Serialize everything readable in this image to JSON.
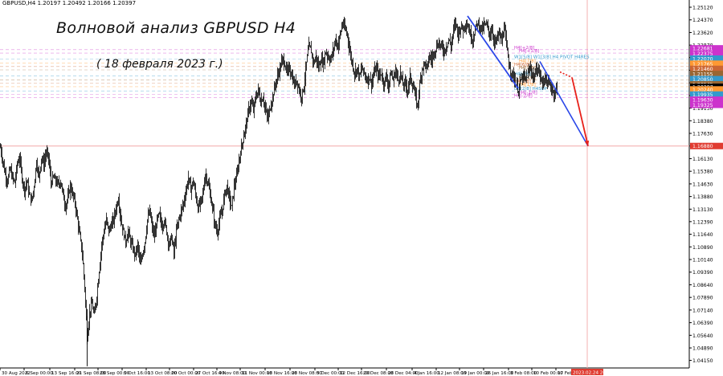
{
  "header": {
    "symbol_label": "GBPUSD,H4  1.20197 1.20492 1.20166 1.20397"
  },
  "title": "Волновой анализ GBPUSD H4",
  "subtitle": "( 18 февраля 2023 г.)",
  "chart_data": {
    "type": "candlestick",
    "ylim": [
      1.037,
      1.2555
    ],
    "y_ticks": [
      "1.25120",
      "1.24370",
      "1.23620",
      "1.22870",
      "1.22130",
      "1.21380",
      "1.20630",
      "1.19880",
      "1.19130",
      "1.18380",
      "1.17630",
      "1.16880",
      "1.16130",
      "1.15380",
      "1.14630",
      "1.13880",
      "1.13130",
      "1.12390",
      "1.11640",
      "1.10890",
      "1.10140",
      "1.09390",
      "1.08640",
      "1.07890",
      "1.07140",
      "1.06390",
      "1.05640",
      "1.04890",
      "1.04150",
      "1.03400"
    ],
    "x_ticks": [
      "30 Aug 2022",
      "6 Sep 00:00",
      "13 Sep 16:00",
      "21 Sep 08:00",
      "28 Sep 00:00",
      "5 Oct 16:00",
      "13 Oct 08:00",
      "20 Oct 00:00",
      "27 Oct 16:00",
      "4 Nov 08:00",
      "11 Nov 00:00",
      "18 Nov 16:00",
      "28 Nov 08:00",
      "5 Dec 00:00",
      "12 Dec 16:00",
      "20 Dec 08:00",
      "28 Dec 04:00",
      "4 Jan 16:00",
      "12 Jan 08:00",
      "19 Jan 00:00",
      "26 Jan 16:00",
      "3 Feb 08:00",
      "10 Feb 00:00",
      "17 Feb 16:00"
    ],
    "x_highlight_label": "2023.02.24 20:00",
    "close_path": [
      {
        "x": 0,
        "y": 1.168
      },
      {
        "x": 3,
        "y": 1.16
      },
      {
        "x": 6,
        "y": 1.152
      },
      {
        "x": 9,
        "y": 1.148
      },
      {
        "x": 12,
        "y": 1.155
      },
      {
        "x": 15,
        "y": 1.15
      },
      {
        "x": 18,
        "y": 1.147
      },
      {
        "x": 21,
        "y": 1.158
      },
      {
        "x": 24,
        "y": 1.162
      },
      {
        "x": 27,
        "y": 1.15
      },
      {
        "x": 30,
        "y": 1.143
      },
      {
        "x": 33,
        "y": 1.148
      },
      {
        "x": 36,
        "y": 1.14
      },
      {
        "x": 39,
        "y": 1.136
      },
      {
        "x": 42,
        "y": 1.145
      },
      {
        "x": 45,
        "y": 1.16
      },
      {
        "x": 48,
        "y": 1.15
      },
      {
        "x": 51,
        "y": 1.162
      },
      {
        "x": 54,
        "y": 1.158
      },
      {
        "x": 57,
        "y": 1.165
      },
      {
        "x": 60,
        "y": 1.162
      },
      {
        "x": 63,
        "y": 1.147
      },
      {
        "x": 66,
        "y": 1.15
      },
      {
        "x": 69,
        "y": 1.148
      },
      {
        "x": 72,
        "y": 1.146
      },
      {
        "x": 75,
        "y": 1.148
      },
      {
        "x": 78,
        "y": 1.14
      },
      {
        "x": 81,
        "y": 1.133
      },
      {
        "x": 84,
        "y": 1.138
      },
      {
        "x": 87,
        "y": 1.145
      },
      {
        "x": 90,
        "y": 1.14
      },
      {
        "x": 93,
        "y": 1.135
      },
      {
        "x": 96,
        "y": 1.125
      },
      {
        "x": 99,
        "y": 1.115
      },
      {
        "x": 102,
        "y": 1.105
      },
      {
        "x": 105,
        "y": 1.085
      },
      {
        "x": 108,
        "y": 1.055
      },
      {
        "x": 111,
        "y": 1.07
      },
      {
        "x": 114,
        "y": 1.075
      },
      {
        "x": 117,
        "y": 1.068
      },
      {
        "x": 120,
        "y": 1.08
      },
      {
        "x": 123,
        "y": 1.095
      },
      {
        "x": 126,
        "y": 1.11
      },
      {
        "x": 129,
        "y": 1.118
      },
      {
        "x": 132,
        "y": 1.125
      },
      {
        "x": 135,
        "y": 1.118
      },
      {
        "x": 138,
        "y": 1.122
      },
      {
        "x": 141,
        "y": 1.125
      },
      {
        "x": 144,
        "y": 1.132
      },
      {
        "x": 147,
        "y": 1.138
      },
      {
        "x": 150,
        "y": 1.125
      },
      {
        "x": 153,
        "y": 1.118
      },
      {
        "x": 156,
        "y": 1.112
      },
      {
        "x": 159,
        "y": 1.118
      },
      {
        "x": 162,
        "y": 1.112
      },
      {
        "x": 165,
        "y": 1.108
      },
      {
        "x": 168,
        "y": 1.104
      },
      {
        "x": 171,
        "y": 1.11
      },
      {
        "x": 174,
        "y": 1.098
      },
      {
        "x": 177,
        "y": 1.105
      },
      {
        "x": 180,
        "y": 1.112
      },
      {
        "x": 183,
        "y": 1.125
      },
      {
        "x": 186,
        "y": 1.13
      },
      {
        "x": 189,
        "y": 1.12
      },
      {
        "x": 192,
        "y": 1.115
      },
      {
        "x": 195,
        "y": 1.125
      },
      {
        "x": 198,
        "y": 1.128
      },
      {
        "x": 201,
        "y": 1.121
      },
      {
        "x": 204,
        "y": 1.125
      },
      {
        "x": 207,
        "y": 1.118
      },
      {
        "x": 210,
        "y": 1.11
      },
      {
        "x": 213,
        "y": 1.115
      },
      {
        "x": 216,
        "y": 1.105
      },
      {
        "x": 219,
        "y": 1.118
      },
      {
        "x": 222,
        "y": 1.125
      },
      {
        "x": 225,
        "y": 1.13
      },
      {
        "x": 228,
        "y": 1.135
      },
      {
        "x": 231,
        "y": 1.142
      },
      {
        "x": 234,
        "y": 1.15
      },
      {
        "x": 237,
        "y": 1.143
      },
      {
        "x": 240,
        "y": 1.148
      },
      {
        "x": 243,
        "y": 1.14
      },
      {
        "x": 246,
        "y": 1.132
      },
      {
        "x": 249,
        "y": 1.135
      },
      {
        "x": 252,
        "y": 1.14
      },
      {
        "x": 255,
        "y": 1.152
      },
      {
        "x": 258,
        "y": 1.148
      },
      {
        "x": 261,
        "y": 1.14
      },
      {
        "x": 264,
        "y": 1.132
      },
      {
        "x": 267,
        "y": 1.122
      },
      {
        "x": 270,
        "y": 1.118
      },
      {
        "x": 273,
        "y": 1.125
      },
      {
        "x": 276,
        "y": 1.13
      },
      {
        "x": 279,
        "y": 1.14
      },
      {
        "x": 282,
        "y": 1.145
      },
      {
        "x": 285,
        "y": 1.138
      },
      {
        "x": 288,
        "y": 1.132
      },
      {
        "x": 291,
        "y": 1.145
      },
      {
        "x": 294,
        "y": 1.15
      },
      {
        "x": 297,
        "y": 1.16
      },
      {
        "x": 300,
        "y": 1.168
      },
      {
        "x": 303,
        "y": 1.175
      },
      {
        "x": 306,
        "y": 1.182
      },
      {
        "x": 309,
        "y": 1.19
      },
      {
        "x": 312,
        "y": 1.195
      },
      {
        "x": 315,
        "y": 1.19
      },
      {
        "x": 318,
        "y": 1.198
      },
      {
        "x": 321,
        "y": 1.202
      },
      {
        "x": 324,
        "y": 1.195
      },
      {
        "x": 327,
        "y": 1.198
      },
      {
        "x": 330,
        "y": 1.19
      },
      {
        "x": 333,
        "y": 1.185
      },
      {
        "x": 336,
        "y": 1.192
      },
      {
        "x": 339,
        "y": 1.198
      },
      {
        "x": 342,
        "y": 1.205
      },
      {
        "x": 345,
        "y": 1.21
      },
      {
        "x": 348,
        "y": 1.215
      },
      {
        "x": 351,
        "y": 1.22
      },
      {
        "x": 354,
        "y": 1.218
      },
      {
        "x": 357,
        "y": 1.212
      },
      {
        "x": 360,
        "y": 1.215
      },
      {
        "x": 363,
        "y": 1.21
      },
      {
        "x": 366,
        "y": 1.205
      },
      {
        "x": 369,
        "y": 1.208
      },
      {
        "x": 372,
        "y": 1.202
      },
      {
        "x": 375,
        "y": 1.198
      },
      {
        "x": 378,
        "y": 1.205
      },
      {
        "x": 381,
        "y": 1.218
      },
      {
        "x": 384,
        "y": 1.228
      },
      {
        "x": 387,
        "y": 1.225
      },
      {
        "x": 390,
        "y": 1.218
      },
      {
        "x": 393,
        "y": 1.222
      },
      {
        "x": 396,
        "y": 1.215
      },
      {
        "x": 399,
        "y": 1.22
      },
      {
        "x": 402,
        "y": 1.218
      },
      {
        "x": 405,
        "y": 1.225
      },
      {
        "x": 408,
        "y": 1.222
      },
      {
        "x": 411,
        "y": 1.22
      },
      {
        "x": 414,
        "y": 1.225
      },
      {
        "x": 417,
        "y": 1.232
      },
      {
        "x": 420,
        "y": 1.228
      },
      {
        "x": 423,
        "y": 1.235
      },
      {
        "x": 426,
        "y": 1.242
      },
      {
        "x": 429,
        "y": 1.238
      },
      {
        "x": 432,
        "y": 1.235
      },
      {
        "x": 435,
        "y": 1.225
      },
      {
        "x": 438,
        "y": 1.218
      },
      {
        "x": 441,
        "y": 1.212
      },
      {
        "x": 444,
        "y": 1.215
      },
      {
        "x": 447,
        "y": 1.21
      },
      {
        "x": 450,
        "y": 1.215
      },
      {
        "x": 453,
        "y": 1.212
      },
      {
        "x": 456,
        "y": 1.208
      },
      {
        "x": 459,
        "y": 1.21
      },
      {
        "x": 462,
        "y": 1.206
      },
      {
        "x": 465,
        "y": 1.212
      },
      {
        "x": 468,
        "y": 1.215
      },
      {
        "x": 471,
        "y": 1.21
      },
      {
        "x": 474,
        "y": 1.212
      },
      {
        "x": 477,
        "y": 1.206
      },
      {
        "x": 480,
        "y": 1.21
      },
      {
        "x": 483,
        "y": 1.205
      },
      {
        "x": 486,
        "y": 1.212
      },
      {
        "x": 489,
        "y": 1.208
      },
      {
        "x": 492,
        "y": 1.214
      },
      {
        "x": 495,
        "y": 1.208
      },
      {
        "x": 498,
        "y": 1.212
      },
      {
        "x": 501,
        "y": 1.205
      },
      {
        "x": 504,
        "y": 1.206
      },
      {
        "x": 507,
        "y": 1.202
      },
      {
        "x": 510,
        "y": 1.21
      },
      {
        "x": 513,
        "y": 1.205
      },
      {
        "x": 516,
        "y": 1.2
      },
      {
        "x": 519,
        "y": 1.192
      },
      {
        "x": 522,
        "y": 1.205
      },
      {
        "x": 525,
        "y": 1.215
      },
      {
        "x": 528,
        "y": 1.218
      },
      {
        "x": 531,
        "y": 1.215
      },
      {
        "x": 534,
        "y": 1.222
      },
      {
        "x": 537,
        "y": 1.22
      },
      {
        "x": 540,
        "y": 1.225
      },
      {
        "x": 543,
        "y": 1.228
      },
      {
        "x": 546,
        "y": 1.23
      },
      {
        "x": 549,
        "y": 1.228
      },
      {
        "x": 552,
        "y": 1.225
      },
      {
        "x": 555,
        "y": 1.228
      },
      {
        "x": 558,
        "y": 1.232
      },
      {
        "x": 561,
        "y": 1.228
      },
      {
        "x": 564,
        "y": 1.238
      },
      {
        "x": 567,
        "y": 1.242
      },
      {
        "x": 570,
        "y": 1.235
      },
      {
        "x": 573,
        "y": 1.24
      },
      {
        "x": 576,
        "y": 1.238
      },
      {
        "x": 579,
        "y": 1.242
      },
      {
        "x": 582,
        "y": 1.24
      },
      {
        "x": 585,
        "y": 1.235
      },
      {
        "x": 588,
        "y": 1.232
      },
      {
        "x": 591,
        "y": 1.238
      },
      {
        "x": 594,
        "y": 1.242
      },
      {
        "x": 597,
        "y": 1.24
      },
      {
        "x": 600,
        "y": 1.238
      },
      {
        "x": 603,
        "y": 1.241
      },
      {
        "x": 606,
        "y": 1.24
      },
      {
        "x": 609,
        "y": 1.235
      },
      {
        "x": 612,
        "y": 1.238
      },
      {
        "x": 615,
        "y": 1.23
      },
      {
        "x": 618,
        "y": 1.232
      },
      {
        "x": 621,
        "y": 1.236
      },
      {
        "x": 624,
        "y": 1.23
      },
      {
        "x": 627,
        "y": 1.24
      },
      {
        "x": 630,
        "y": 1.228
      },
      {
        "x": 633,
        "y": 1.218
      },
      {
        "x": 636,
        "y": 1.212
      },
      {
        "x": 639,
        "y": 1.21
      },
      {
        "x": 642,
        "y": 1.205
      },
      {
        "x": 645,
        "y": 1.202
      },
      {
        "x": 648,
        "y": 1.208
      },
      {
        "x": 651,
        "y": 1.21
      },
      {
        "x": 654,
        "y": 1.208
      },
      {
        "x": 657,
        "y": 1.212
      },
      {
        "x": 660,
        "y": 1.215
      },
      {
        "x": 663,
        "y": 1.21
      },
      {
        "x": 666,
        "y": 1.212
      },
      {
        "x": 669,
        "y": 1.215
      },
      {
        "x": 672,
        "y": 1.21
      },
      {
        "x": 675,
        "y": 1.206
      },
      {
        "x": 678,
        "y": 1.21
      },
      {
        "x": 681,
        "y": 1.206
      },
      {
        "x": 684,
        "y": 1.205
      },
      {
        "x": 687,
        "y": 1.202
      },
      {
        "x": 690,
        "y": 1.2
      },
      {
        "x": 693,
        "y": 1.204
      }
    ],
    "blue_line": [
      {
        "x": 582,
        "y": 1.246
      },
      {
        "x": 645,
        "y": 1.203
      }
    ],
    "blue_line2": [
      {
        "x": 672,
        "y": 1.219
      },
      {
        "x": 732,
        "y": 1.1688
      }
    ],
    "red_arrow": [
      {
        "x": 712,
        "y": 1.2095
      },
      {
        "x": 732,
        "y": 1.1688
      }
    ],
    "red_dotted_arrow": [
      {
        "x": 697,
        "y": 1.2128
      },
      {
        "x": 712,
        "y": 1.2095
      }
    ],
    "red_horizontal_level": "1.16880",
    "pivot_levels": [
      {
        "label": "H4[+2/8]",
        "price": 1.226,
        "color": "#cc33cc"
      },
      {
        "label": "H4[+1/8]",
        "price": 1.224,
        "color": "#cc33cc"
      },
      {
        "label": "W1[5/8] W1[3/8] H4 PIVOT H4RES",
        "price": 1.2205,
        "color": "#3399cc"
      },
      {
        "label": "H4[7/8]",
        "price": 1.218,
        "color": "#ff9933"
      },
      {
        "label": "H4[6/8]",
        "price": 1.216,
        "color": "#cc6633"
      },
      {
        "label": "H4[5/8]",
        "price": 1.214,
        "color": "#996633"
      },
      {
        "label": "H4[4/8]",
        "price": 1.2105,
        "color": "#3399cc"
      },
      {
        "label": "H4[3/8]",
        "price": 1.208,
        "color": "#996633"
      },
      {
        "label": "H4[2/8]",
        "price": 1.206,
        "color": "#cc6633"
      },
      {
        "label": "H4[1/8]",
        "price": 1.204,
        "color": "#ff9933"
      },
      {
        "label": "D1[2/8] H4SUP",
        "price": 1.2015,
        "color": "#3399cc"
      },
      {
        "label": "H4[-1/8]",
        "price": 1.1995,
        "color": "#cc33cc"
      },
      {
        "label": "H4[-2/8]",
        "price": 1.1975,
        "color": "#cc33cc"
      }
    ],
    "price_tags": [
      {
        "value": "1.22681",
        "price": 1.2268,
        "color": "#cc33cc"
      },
      {
        "value": "1.22375",
        "price": 1.22375,
        "color": "#cc33cc"
      },
      {
        "value": "1.22070",
        "price": 1.2207,
        "color": "#3399cc"
      },
      {
        "value": "1.21765",
        "price": 1.21765,
        "color": "#ff9933"
      },
      {
        "value": "1.21460",
        "price": 1.2146,
        "color": "#cc6633"
      },
      {
        "value": "1.21155",
        "price": 1.21155,
        "color": "#996633"
      },
      {
        "value": "1.20850",
        "price": 1.2085,
        "color": "#3399cc"
      },
      {
        "value": "1.20545",
        "price": 1.20545,
        "color": "#996633"
      },
      {
        "value": "1.20397",
        "price": 1.20397,
        "color": "#000000"
      },
      {
        "value": "1.20240",
        "price": 1.2024,
        "color": "#ff9933"
      },
      {
        "value": "1.19935",
        "price": 1.19935,
        "color": "#3399cc"
      },
      {
        "value": "1.19630",
        "price": 1.1963,
        "color": "#cc33cc"
      },
      {
        "value": "1.19325",
        "price": 1.19325,
        "color": "#cc33cc"
      },
      {
        "value": "1.16880",
        "price": 1.1688,
        "color": "#e03c31"
      }
    ],
    "accent_colors": {
      "blue": "#2a46e8",
      "red": "#e8211a",
      "vline": "#f3b0b0"
    }
  }
}
